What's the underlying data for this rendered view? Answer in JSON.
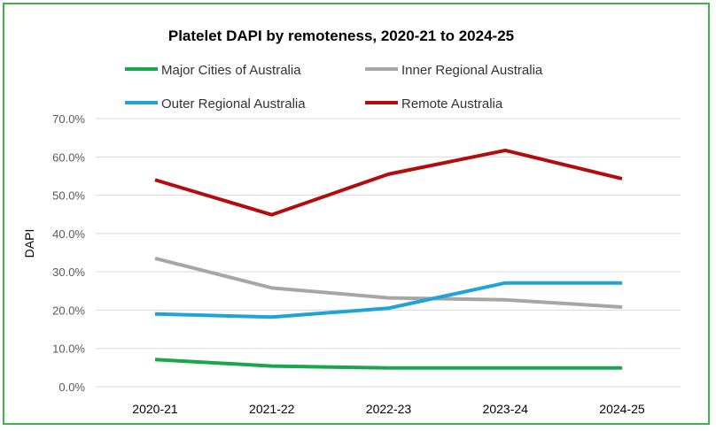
{
  "chart_data": {
    "type": "line",
    "title": "Platelet DAPI by remoteness, 2020-21 to 2024-25",
    "xlabel": "",
    "ylabel": "DAPI",
    "categories": [
      "2020-21",
      "2021-22",
      "2022-23",
      "2023-24",
      "2024-25"
    ],
    "ylim": [
      0,
      70
    ],
    "yticks": [
      "0.0%",
      "10.0%",
      "20.0%",
      "30.0%",
      "40.0%",
      "50.0%",
      "60.0%",
      "70.0%"
    ],
    "grid": true,
    "legend_position": "top",
    "series": [
      {
        "name": "Major Cities of Australia",
        "color": "#1aa64a",
        "values": [
          7.1,
          5.4,
          4.9,
          4.9,
          4.9
        ]
      },
      {
        "name": "Inner Regional Australia",
        "color": "#a6a6a6",
        "values": [
          33.5,
          25.8,
          23.2,
          22.7,
          20.8
        ]
      },
      {
        "name": "Outer Regional Australia",
        "color": "#1fa3d8",
        "values": [
          19.0,
          18.2,
          20.5,
          27.1,
          27.1
        ]
      },
      {
        "name": "Remote Australia",
        "color": "#b30c0c",
        "values": [
          54.0,
          44.9,
          55.5,
          61.7,
          54.3
        ]
      }
    ]
  }
}
